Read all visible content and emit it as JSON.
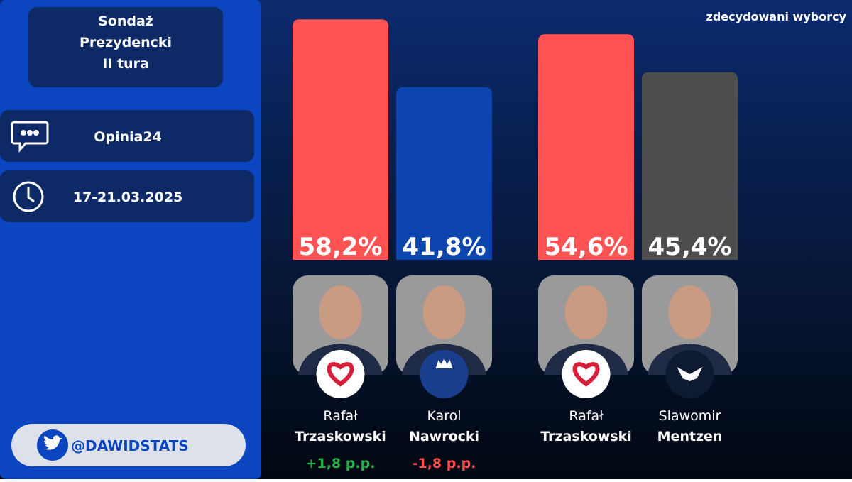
{
  "sidebar": {
    "title_lines": [
      "Sondaż",
      "Prezydencki",
      "II tura"
    ],
    "pollster": "Opinia24",
    "dates": "17-21.03.2025",
    "handle": "@DAWIDSTATS"
  },
  "chart_data": [
    {
      "type": "bar",
      "candidates": [
        {
          "first_name": "Rafał",
          "last_name": "Trzaskowski",
          "change": "+1,8 p.p.",
          "change_color": "#22b04a"
        },
        {
          "first_name": "Karol",
          "last_name": "Nawrocki",
          "change": "-1,8 p.p.",
          "change_color": "#ff4d4d"
        }
      ],
      "values": [
        58.2,
        41.8
      ],
      "value_labels": [
        "58,2%",
        "41,8%"
      ],
      "colors": [
        "#ff5252",
        "#0b45ad"
      ]
    },
    {
      "type": "bar",
      "subtitle": "zdecydowani wyborcy",
      "candidates": [
        {
          "first_name": "Rafał",
          "last_name": "Trzaskowski"
        },
        {
          "first_name": "Slawomir",
          "last_name": "Mentzen"
        }
      ],
      "values": [
        54.6,
        45.4
      ],
      "value_labels": [
        "54,6%",
        "45,4%"
      ],
      "colors": [
        "#ff5252",
        "#4d4d4d"
      ]
    }
  ]
}
